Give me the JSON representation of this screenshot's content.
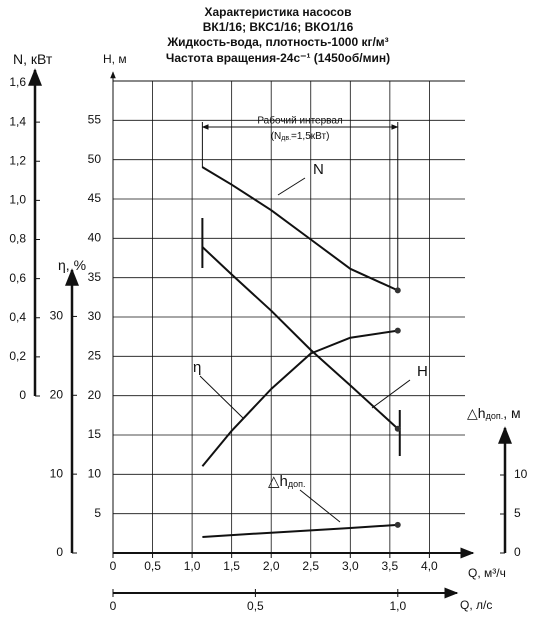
{
  "chart_data": {
    "type": "line",
    "title": [
      "Характеристика насосов",
      "ВК1/16; ВКС1/16; ВКО1/16",
      "Жидкость-вода, плотность-1000 кг/м³",
      "Частота вращения-24с⁻¹ (1450об/мин)"
    ],
    "x": [
      1.13,
      1.5,
      2.0,
      2.5,
      3.0,
      3.6
    ],
    "xlabel": "Q, м³/ч",
    "xlim": [
      0,
      4.45
    ],
    "xticks": [
      0,
      {
        "value": 0.5,
        "label": "0,5"
      },
      {
        "value": 1.0,
        "label": "1,0"
      },
      {
        "value": 1.5,
        "label": "1,5"
      },
      {
        "value": 2.0,
        "label": "2,0"
      },
      {
        "value": 2.5,
        "label": "2,5"
      },
      {
        "value": 3.0,
        "label": "3,0"
      },
      {
        "value": 3.5,
        "label": "3,5"
      },
      {
        "value": 4.0,
        "label": "4,0"
      }
    ],
    "x2label": "Q, л/с",
    "x2lim": [
      0,
      1.236
    ],
    "x2ticks": [
      0,
      {
        "value": 0.5,
        "label": "0,5"
      },
      {
        "value": 1.0,
        "label": "1,0"
      }
    ],
    "ylabel": "H, м",
    "ylim": [
      0,
      60
    ],
    "yticks": [
      5,
      10,
      15,
      20,
      25,
      30,
      35,
      40,
      45,
      50,
      55
    ],
    "grid": true,
    "axes": [
      {
        "id": "n",
        "label": "N, кВт",
        "lim": [
          0,
          1.6
        ],
        "ticks": [
          0,
          {
            "value": 0.2,
            "label": "0,2"
          },
          {
            "value": 0.4,
            "label": "0,4"
          },
          {
            "value": 0.6,
            "label": "0,6"
          },
          {
            "value": 0.8,
            "label": "0,8"
          },
          {
            "value": 1.0,
            "label": "1,0"
          },
          {
            "value": 1.2,
            "label": "1,2"
          },
          {
            "value": 1.4,
            "label": "1,4"
          },
          {
            "value": 1.6,
            "label": "1,6"
          }
        ]
      },
      {
        "id": "eta",
        "label": "η, %",
        "lim": [
          0,
          35
        ],
        "ticks": [
          0,
          10,
          20,
          30
        ]
      },
      {
        "id": "dh",
        "label": "△h",
        "label_sub": "доп.",
        "label_suffix": ", м",
        "lim": [
          0,
          15
        ],
        "ticks": [
          0,
          5,
          10
        ]
      }
    ],
    "series": [
      {
        "name": "N",
        "axis": "n",
        "color": "#111111",
        "values": [
          1.17,
          1.08,
          0.95,
          0.8,
          0.65,
          0.54
        ]
      },
      {
        "name": "H",
        "axis": "y",
        "color": "#111111",
        "values": [
          38.9,
          35.4,
          30.8,
          25.8,
          21.3,
          15.8
        ]
      },
      {
        "name": "η",
        "axis": "eta",
        "color": "#111111",
        "values": [
          11,
          15.5,
          20.8,
          25.3,
          27.3,
          28.2
        ]
      },
      {
        "name": "△h",
        "name_sub": "доп.",
        "axis": "dh",
        "color": "#111111",
        "values": [
          2.05,
          2.3,
          2.6,
          2.9,
          3.2,
          3.6
        ]
      }
    ],
    "operating_range": {
      "label": "Рабочий интервал",
      "note_prefix": "(N",
      "note_sub": "дв.",
      "note_suffix": "=1,5кВт)",
      "values": [
        1.13,
        3.6
      ]
    }
  }
}
